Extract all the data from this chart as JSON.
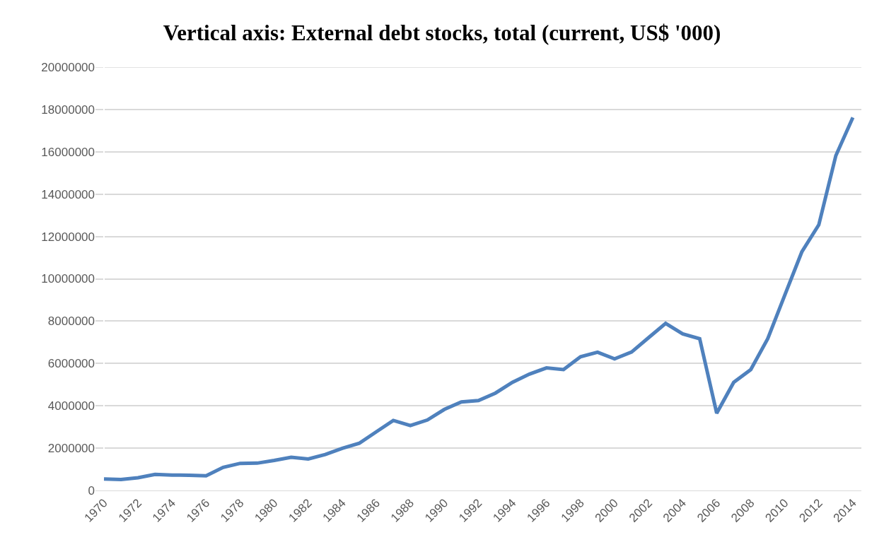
{
  "chart_data": {
    "type": "line",
    "title": "Vertical axis: External debt stocks, total (current, US$ '000)",
    "categories": [
      "1970",
      null,
      "1972",
      null,
      "1974",
      null,
      "1976",
      null,
      "1978",
      null,
      "1980",
      null,
      "1982",
      null,
      "1984",
      null,
      "1986",
      null,
      "1988",
      null,
      "1990",
      null,
      "1992",
      null,
      "1994",
      null,
      "1996",
      null,
      "1998",
      null,
      "2000",
      null,
      "2002",
      null,
      "2004",
      null,
      "2006",
      null,
      "2008",
      null,
      "2010",
      null,
      "2012",
      null,
      "2014"
    ],
    "series": [
      {
        "color": "#4f81bd",
        "values": [
          540000,
          520000,
          600000,
          760000,
          730000,
          720000,
          690000,
          1090000,
          1280000,
          1290000,
          1420000,
          1570000,
          1490000,
          1700000,
          1990000,
          2230000,
          2770000,
          3310000,
          3070000,
          3330000,
          3830000,
          4180000,
          4250000,
          4600000,
          5110000,
          5500000,
          5790000,
          5710000,
          6320000,
          6530000,
          6220000,
          6540000,
          7220000,
          7890000,
          7400000,
          7170000,
          3650000,
          5110000,
          5710000,
          7170000,
          9230000,
          11270000,
          12550000,
          15820000,
          17620000
        ]
      }
    ],
    "ylim": [
      0,
      20000000
    ],
    "yticks": [
      0,
      2000000,
      4000000,
      6000000,
      8000000,
      10000000,
      12000000,
      14000000,
      16000000,
      18000000,
      20000000
    ],
    "grid": "y",
    "legend": false,
    "marker": "none",
    "line_style": "solid"
  }
}
